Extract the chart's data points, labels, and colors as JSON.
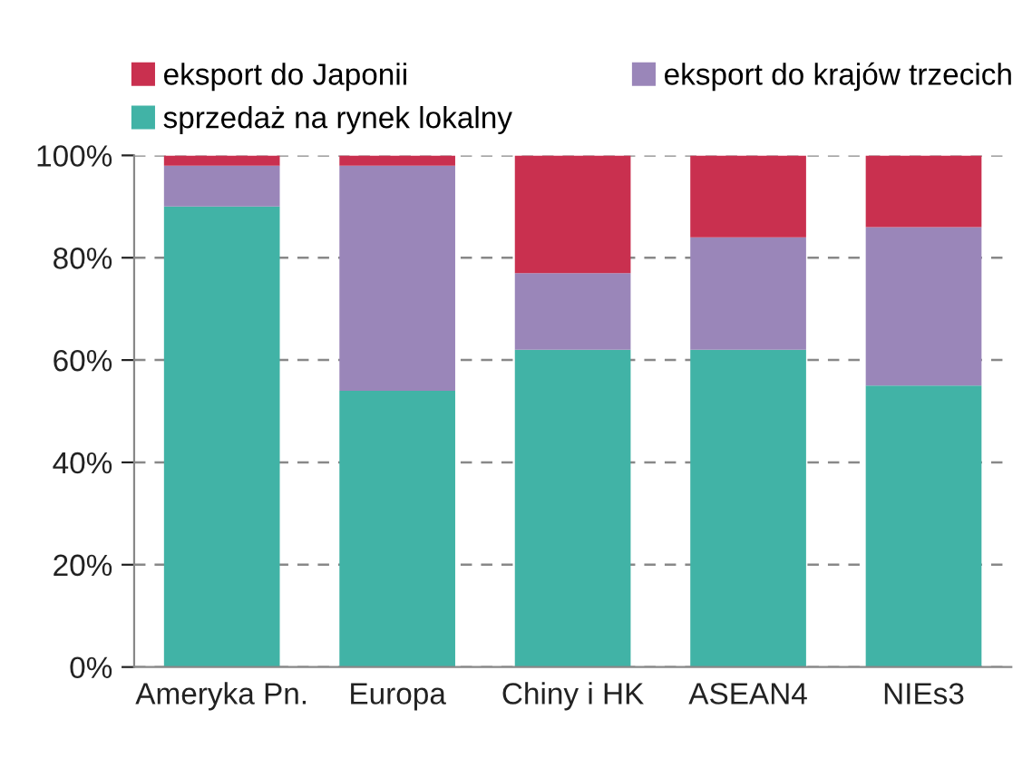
{
  "chart_data": {
    "type": "bar",
    "stacked": true,
    "categories": [
      "Ameryka Pn.",
      "Europa",
      "Chiny i HK",
      "ASEAN4",
      "NIEs3"
    ],
    "series": [
      {
        "name": "sprzedaż na rynek lokalny",
        "color": "#41b3a6",
        "values": [
          90,
          54,
          62,
          62,
          55
        ]
      },
      {
        "name": "eksport do krajów trzecich",
        "color": "#9a86b9",
        "values": [
          8,
          44,
          15,
          22,
          31
        ]
      },
      {
        "name": "eksport do Japonii",
        "color": "#c9304f",
        "values": [
          2,
          2,
          23,
          16,
          14
        ]
      }
    ],
    "ylim": [
      0,
      100
    ],
    "yticks": [
      {
        "value": 0,
        "label": "0%"
      },
      {
        "value": 20,
        "label": "20%"
      },
      {
        "value": 40,
        "label": "40%"
      },
      {
        "value": 60,
        "label": "60%"
      },
      {
        "value": 80,
        "label": "80%"
      },
      {
        "value": 100,
        "label": "100%"
      }
    ],
    "grid": "y",
    "legend": "top"
  }
}
